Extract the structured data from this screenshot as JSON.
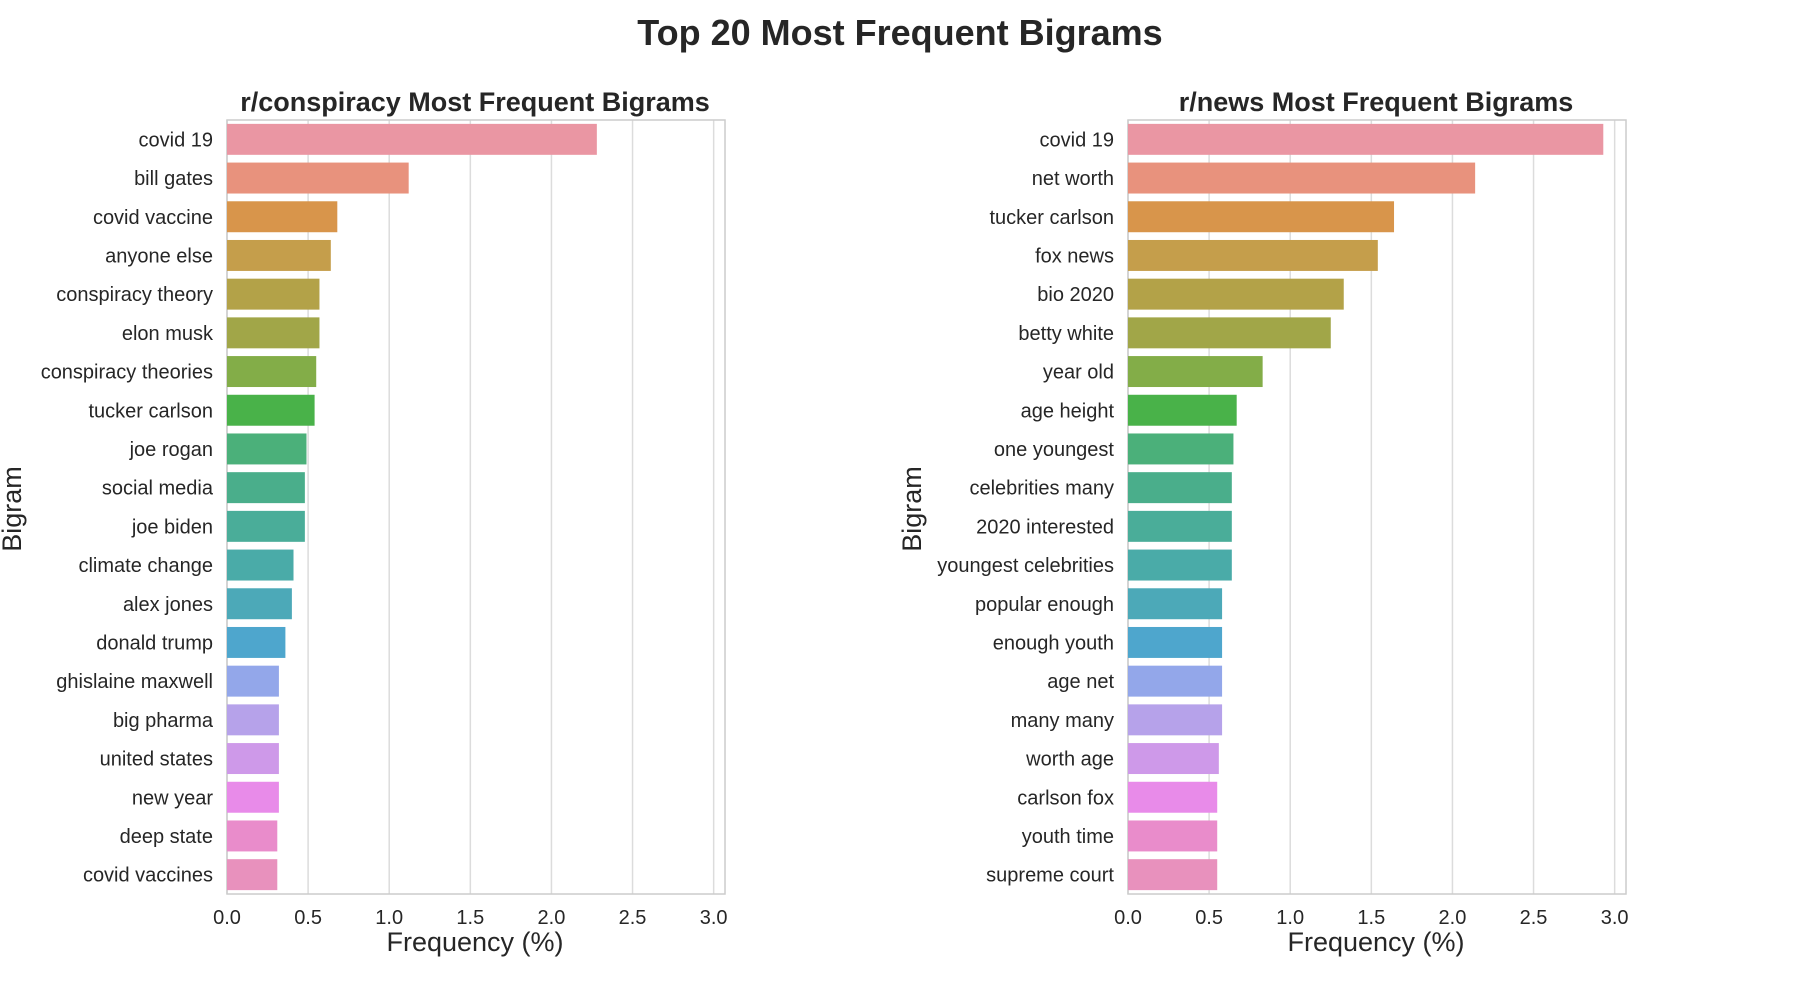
{
  "figure": {
    "title": "Top 20 Most Frequent Bigrams"
  },
  "chart_data": [
    {
      "type": "bar",
      "orientation": "horizontal",
      "title": "r/conspiracy Most Frequent Bigrams",
      "xlabel": "Frequency (%)",
      "ylabel": "Bigram",
      "xlim": [
        0,
        3.07
      ],
      "xticks": [
        "0.0",
        "0.5",
        "1.0",
        "1.5",
        "2.0",
        "2.5",
        "3.0"
      ],
      "grid": "vertical",
      "categories": [
        "covid 19",
        "bill gates",
        "covid vaccine",
        "anyone else",
        "conspiracy theory",
        "elon musk",
        "conspiracy theories",
        "tucker carlson",
        "joe rogan",
        "social media",
        "joe biden",
        "climate change",
        "alex jones",
        "donald trump",
        "ghislaine maxwell",
        "big pharma",
        "united states",
        "new year",
        "deep state",
        "covid vaccines"
      ],
      "values": [
        2.28,
        1.12,
        0.68,
        0.64,
        0.57,
        0.57,
        0.55,
        0.54,
        0.49,
        0.48,
        0.48,
        0.41,
        0.4,
        0.36,
        0.32,
        0.32,
        0.32,
        0.32,
        0.31,
        0.31
      ]
    },
    {
      "type": "bar",
      "orientation": "horizontal",
      "title": "r/news Most Frequent Bigrams",
      "xlabel": "Frequency (%)",
      "ylabel": "Bigram",
      "xlim": [
        0,
        3.07
      ],
      "xticks": [
        "0.0",
        "0.5",
        "1.0",
        "1.5",
        "2.0",
        "2.5",
        "3.0"
      ],
      "grid": "vertical",
      "categories": [
        "covid 19",
        "net worth",
        "tucker carlson",
        "fox news",
        "bio 2020",
        "betty white",
        "year old",
        "age height",
        "one youngest",
        "celebrities many",
        "2020 interested",
        "youngest celebrities",
        "popular enough",
        "enough youth",
        "age net",
        "many many",
        "worth age",
        "carlson fox",
        "youth time",
        "supreme court"
      ],
      "values": [
        2.93,
        2.14,
        1.64,
        1.54,
        1.33,
        1.25,
        0.83,
        0.67,
        0.65,
        0.64,
        0.64,
        0.64,
        0.58,
        0.58,
        0.58,
        0.58,
        0.56,
        0.55,
        0.55,
        0.55
      ]
    }
  ],
  "palette": [
    "#ea96a3",
    "#e8927d",
    "#d8954b",
    "#c59e4b",
    "#b3a248",
    "#a1a648",
    "#83ad48",
    "#49b249",
    "#4bb07a",
    "#4aae8b",
    "#4aad99",
    "#4aaba8",
    "#4ca9b8",
    "#4ea6cd",
    "#93a7ea",
    "#b6a2ea",
    "#ce99e9",
    "#e88be9",
    "#e98ccb",
    "#e891bd"
  ]
}
